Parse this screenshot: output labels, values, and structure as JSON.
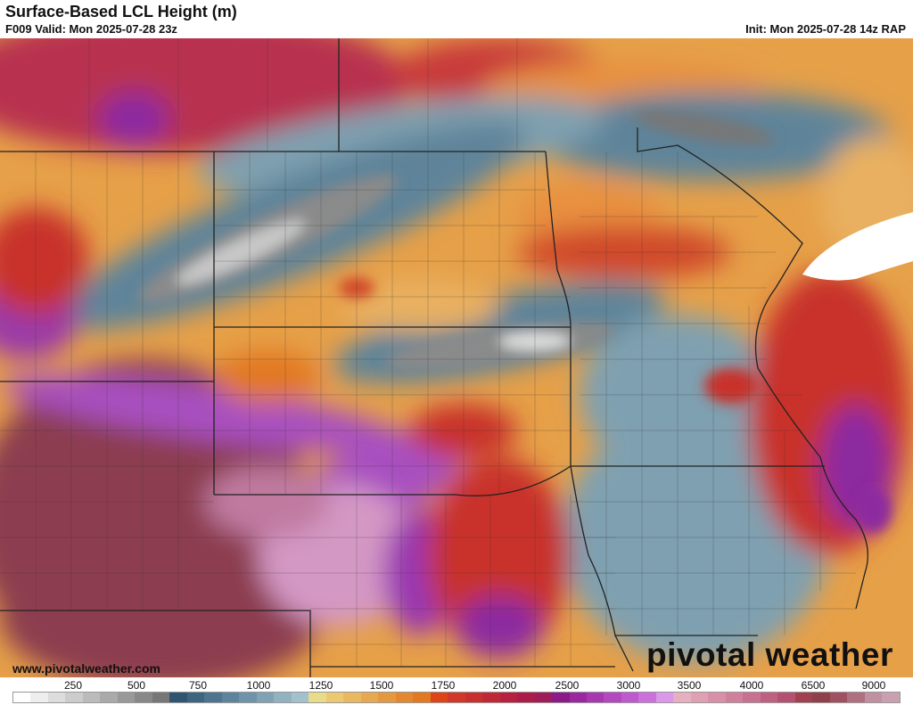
{
  "header": {
    "title": "Surface-Based LCL Height (m)",
    "valid": "F009 Valid: Mon 2025-07-28 23z",
    "init": "Init: Mon 2025-07-28 14z RAP"
  },
  "footer": {
    "url": "www.pivotalweather.com",
    "logo": "pivotal weather"
  },
  "colorbar": {
    "unit": "m",
    "labels": [
      "250",
      "500",
      "750",
      "1000",
      "1250",
      "1500",
      "1750",
      "2000",
      "2500",
      "3000",
      "3500",
      "4000",
      "6500",
      "9000"
    ],
    "colors": [
      "#ffffff",
      "#eeeeee",
      "#dddddd",
      "#cccccc",
      "#bbbbbb",
      "#aaaaaa",
      "#999999",
      "#888888",
      "#777777",
      "#2f5570",
      "#3d6580",
      "#4e7490",
      "#5e849c",
      "#6f93a8",
      "#80a2b4",
      "#92b2c0",
      "#a3c1cc",
      "#e8dc8a",
      "#ecc870",
      "#eab860",
      "#e8a850",
      "#e69840",
      "#e48830",
      "#e27820",
      "#dd4418",
      "#d03828",
      "#c83030",
      "#c02838",
      "#b82040",
      "#ac1c48",
      "#a01c58",
      "#8c1a88",
      "#9a28a0",
      "#a838b0",
      "#b448c0",
      "#c058d0",
      "#cc70dc",
      "#dc98e8",
      "#e6b0c0",
      "#e0a0b4",
      "#d890a8",
      "#d0809c",
      "#c87090",
      "#c06080",
      "#b45070",
      "#a04050",
      "#904048",
      "#a05060",
      "#b07080",
      "#c090a0",
      "#c8a0b0"
    ]
  },
  "map": {
    "colors": {
      "base": "#e6a048",
      "blue": "#5f849a",
      "gray": "#8a8a8a",
      "light_gray": "#c8c8c8",
      "red": "#c8302c",
      "purple": "#8c2aa0",
      "maroon": "#8c3c50",
      "pink": "#d498c4",
      "white": "#ffffff"
    }
  }
}
